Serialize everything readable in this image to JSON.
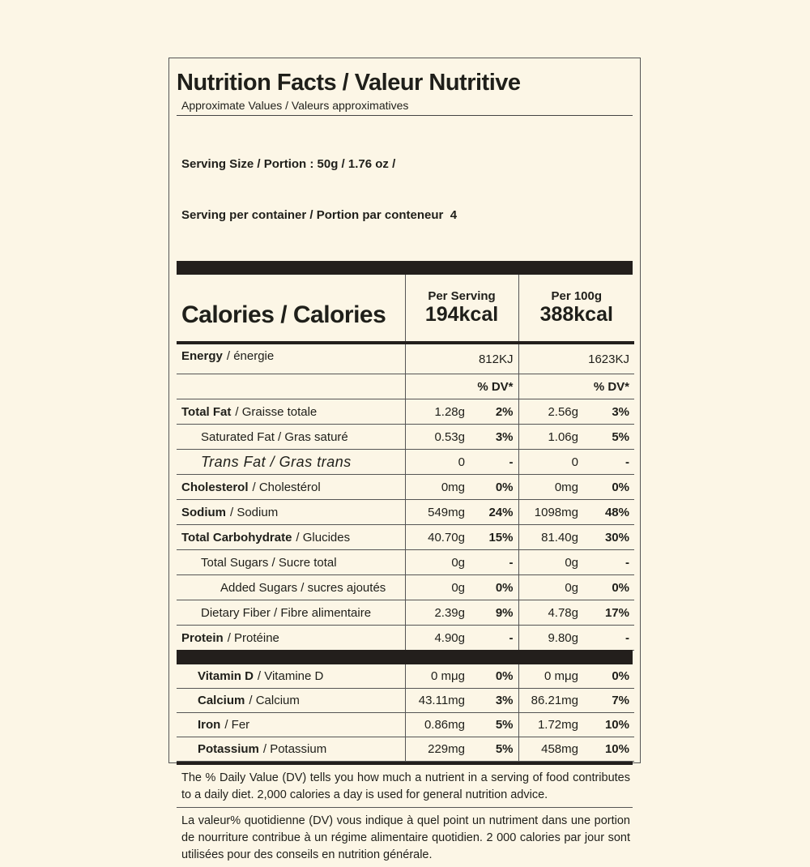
{
  "header": {
    "title": "Nutrition Facts / Valeur Nutritive",
    "subtitle": "Approximate Values / Valeurs approximatives"
  },
  "serving": {
    "size": "Serving Size / Portion : 50g / 1.76 oz /",
    "per_container": "Serving per container / Portion par conteneur  4"
  },
  "calories": {
    "label": "Calories / Calories",
    "per_serving_heading": "Per Serving",
    "per_serving": "194kcal",
    "per_100g_heading": "Per 100g",
    "per_100g": "388kcal"
  },
  "energy": {
    "name": "Energy",
    "name_fr": "/ énergie",
    "per_serving": "812KJ",
    "per_100g": "1623KJ"
  },
  "dv_heading": "% DV*",
  "nutrients": [
    {
      "name": "Total Fat",
      "name_fr": "/ Graisse totale",
      "per_serving": "1.28g",
      "per_serving_dv": "2%",
      "per_100g": "2.56g",
      "per_100g_dv": "3%"
    },
    {
      "name": "Saturated Fat / Gras saturé",
      "per_serving": "0.53g",
      "per_serving_dv": "3%",
      "per_100g": "1.06g",
      "per_100g_dv": "5%"
    },
    {
      "name": "Trans Fat / Gras trans",
      "per_serving": "0",
      "per_serving_dv": "-",
      "per_100g": "0",
      "per_100g_dv": "-"
    },
    {
      "name": "Cholesterol",
      "name_fr": "/ Cholestérol",
      "per_serving": "0mg",
      "per_serving_dv": "0%",
      "per_100g": "0mg",
      "per_100g_dv": "0%"
    },
    {
      "name": "Sodium",
      "name_fr": "/ Sodium",
      "per_serving": "549mg",
      "per_serving_dv": "24%",
      "per_100g": "1098mg",
      "per_100g_dv": "48%"
    },
    {
      "name": "Total Carbohydrate",
      "name_fr": "/ Glucides",
      "per_serving": "40.70g",
      "per_serving_dv": "15%",
      "per_100g": "81.40g",
      "per_100g_dv": "30%"
    },
    {
      "name": "Total Sugars / Sucre total",
      "per_serving": "0g",
      "per_serving_dv": "-",
      "per_100g": "0g",
      "per_100g_dv": "-"
    },
    {
      "name": "Added Sugars / sucres ajoutés",
      "per_serving": "0g",
      "per_serving_dv": "0%",
      "per_100g": "0g",
      "per_100g_dv": "0%"
    },
    {
      "name": "Dietary Fiber / Fibre alimentaire",
      "per_serving": "2.39g",
      "per_serving_dv": "9%",
      "per_100g": "4.78g",
      "per_100g_dv": "17%"
    },
    {
      "name": "Protein",
      "name_fr": "/ Protéine",
      "per_serving": "4.90g",
      "per_serving_dv": "-",
      "per_100g": "9.80g",
      "per_100g_dv": "-"
    }
  ],
  "vitamins": [
    {
      "name": "Vitamin D",
      "name_fr": "/ Vitamine D",
      "per_serving": "0 mμg",
      "per_serving_dv": "0%",
      "per_100g": "0 mμg",
      "per_100g_dv": "0%"
    },
    {
      "name": "Calcium",
      "name_fr": "/ Calcium",
      "per_serving": "43.11mg",
      "per_serving_dv": "3%",
      "per_100g": "86.21mg",
      "per_100g_dv": "7%"
    },
    {
      "name": "Iron",
      "name_fr": "/ Fer",
      "per_serving": "0.86mg",
      "per_serving_dv": "5%",
      "per_100g": "1.72mg",
      "per_100g_dv": "10%"
    },
    {
      "name": "Potassium",
      "name_fr": "/ Potassium",
      "per_serving": "229mg",
      "per_serving_dv": "5%",
      "per_100g": "458mg",
      "per_100g_dv": "10%"
    }
  ],
  "footnotes": [
    "The % Daily Value (DV) tells you how much a nutrient in a serving of food contributes to a daily diet. 2,000 calories a day is used for general nutrition advice.",
    "La valeur% quotidienne (DV) vous indique à quel point un nutriment dans une portion de nourriture contribue à un régime alimentaire quotidien. 2 000 calories par jour sont utilisées pour des conseils en nutrition générale."
  ]
}
